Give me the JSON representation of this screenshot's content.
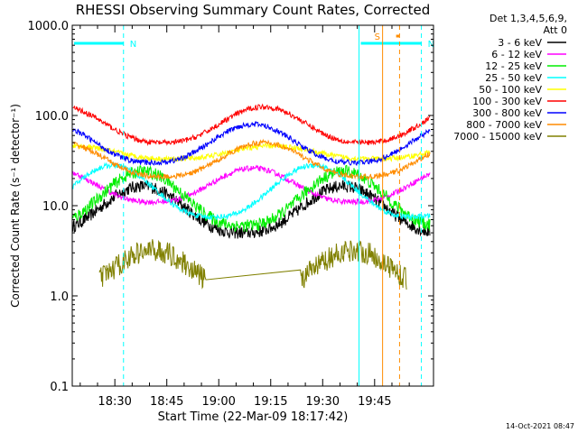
{
  "chart_data": {
    "type": "line",
    "title": "RHESSI Observing Summary Count Rates, Corrected",
    "xlabel": "Start Time (22-Mar-09 18:17:42)",
    "ylabel": "Corrected Count Rate (s⁻¹ detector⁻¹)",
    "y_scale": "log",
    "ylim": [
      0.1,
      1000.0
    ],
    "y_ticks": [
      "0.1",
      "1.0",
      "10.0",
      "100.0",
      "1000.0"
    ],
    "xlim_minutes_of_day": [
      1097.7,
      1202.0
    ],
    "x_ticks": [
      {
        "label": "18:30",
        "minute": 1110
      },
      {
        "label": "18:45",
        "minute": 1125
      },
      {
        "label": "19:00",
        "minute": 1140
      },
      {
        "label": "19:15",
        "minute": 1155
      },
      {
        "label": "19:30",
        "minute": 1170
      },
      {
        "label": "19:45",
        "minute": 1185
      }
    ],
    "legend_header": [
      "Det 1,3,4,5,6,9,",
      "Att 0"
    ],
    "legend_position": "right",
    "series": [
      {
        "name": "3 - 6 keV",
        "color": "#000000",
        "min": 5.0,
        "max": 16.5,
        "phase_start": 0.15
      },
      {
        "name": "6 - 12 keV",
        "color": "#ff00ff",
        "min": 11.0,
        "max": 26.0,
        "phase_start": 0.6
      },
      {
        "name": "12 - 25 keV",
        "color": "#00ee00",
        "min": 6.0,
        "max": 24.0,
        "phase_start": 0.15
      },
      {
        "name": "25 - 50 keV",
        "color": "#00ffff",
        "min": 7.5,
        "max": 28.0,
        "phase_start": 0.3
      },
      {
        "name": "50 - 100 keV",
        "color": "#ffff00",
        "min": 33.0,
        "max": 46.0,
        "phase_start": 0.5
      },
      {
        "name": "100 - 300 keV",
        "color": "#ff0000",
        "min": 50.0,
        "max": 125.0,
        "phase_start": 0.55
      },
      {
        "name": "300 - 800 keV",
        "color": "#0000ff",
        "min": 30.0,
        "max": 80.0,
        "phase_start": 0.6
      },
      {
        "name": "800 - 7000 keV",
        "color": "#ff8c00",
        "min": 21.0,
        "max": 50.0,
        "phase_start": 0.55
      },
      {
        "name": "7000 - 15000 keV",
        "color": "#808000",
        "min": 1.0,
        "max": 3.2,
        "phase_start": 0.1
      }
    ],
    "markers": [
      {
        "label": "N",
        "color": "#00ffff",
        "type": "night",
        "start_minute": 1097.7,
        "end_minute": 1112.5
      },
      {
        "label": "N",
        "color": "#00ffff",
        "type": "night",
        "start_minute": 1180.5,
        "end_minute": 1198.5
      },
      {
        "label": "S",
        "color": "#ff8c00",
        "type": "saa",
        "start_minute": 1187.3,
        "end_minute": 1192.2
      }
    ],
    "footer_date": "14-Oct-2021 08:47"
  }
}
